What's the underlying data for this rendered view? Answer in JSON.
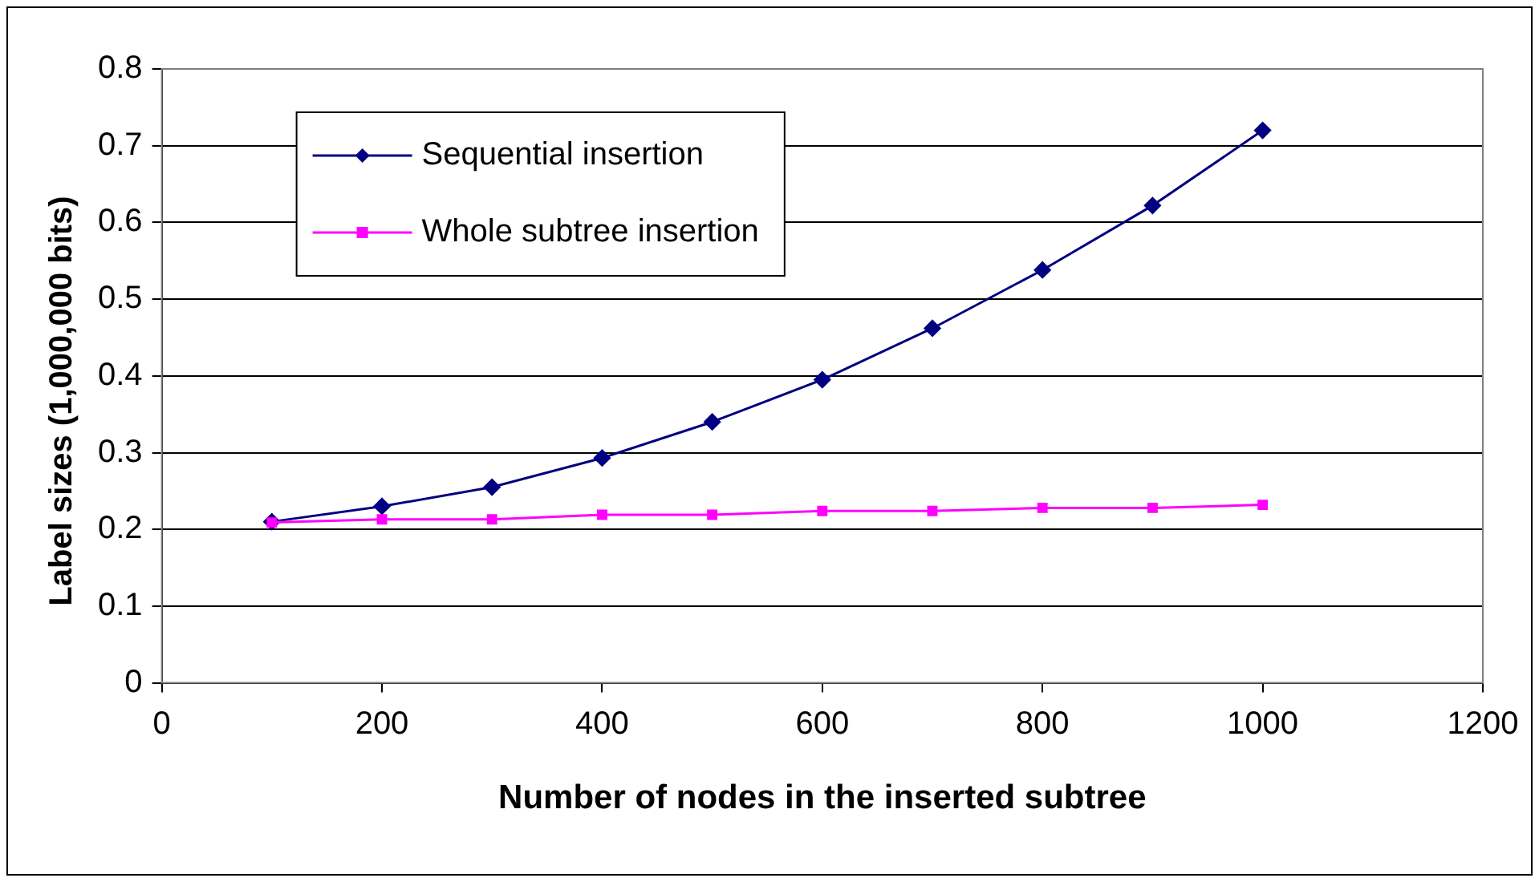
{
  "chart_data": {
    "type": "line",
    "xlabel": "Number of nodes in the inserted subtree",
    "ylabel": "Label sizes (1,000,000 bits)",
    "x": [
      100,
      200,
      300,
      400,
      500,
      600,
      700,
      800,
      900,
      1000
    ],
    "series": [
      {
        "name": "Sequential insertion",
        "color": "#000080",
        "marker": "diamond",
        "values": [
          0.21,
          0.23,
          0.255,
          0.293,
          0.34,
          0.395,
          0.462,
          0.538,
          0.622,
          0.72
        ]
      },
      {
        "name": "Whole subtree insertion",
        "color": "#ff00ff",
        "marker": "square",
        "values": [
          0.209,
          0.213,
          0.213,
          0.219,
          0.219,
          0.224,
          0.224,
          0.228,
          0.228,
          0.232
        ]
      }
    ],
    "xlim": [
      0,
      1200
    ],
    "xticks": [
      0,
      200,
      400,
      600,
      800,
      1000,
      1200
    ],
    "ylim": [
      0,
      0.8
    ],
    "yticks": [
      0,
      0.1,
      0.2,
      0.3,
      0.4,
      0.5,
      0.6,
      0.7,
      0.8
    ],
    "grid": "y",
    "legend": "top left",
    "line_style": "solid"
  }
}
